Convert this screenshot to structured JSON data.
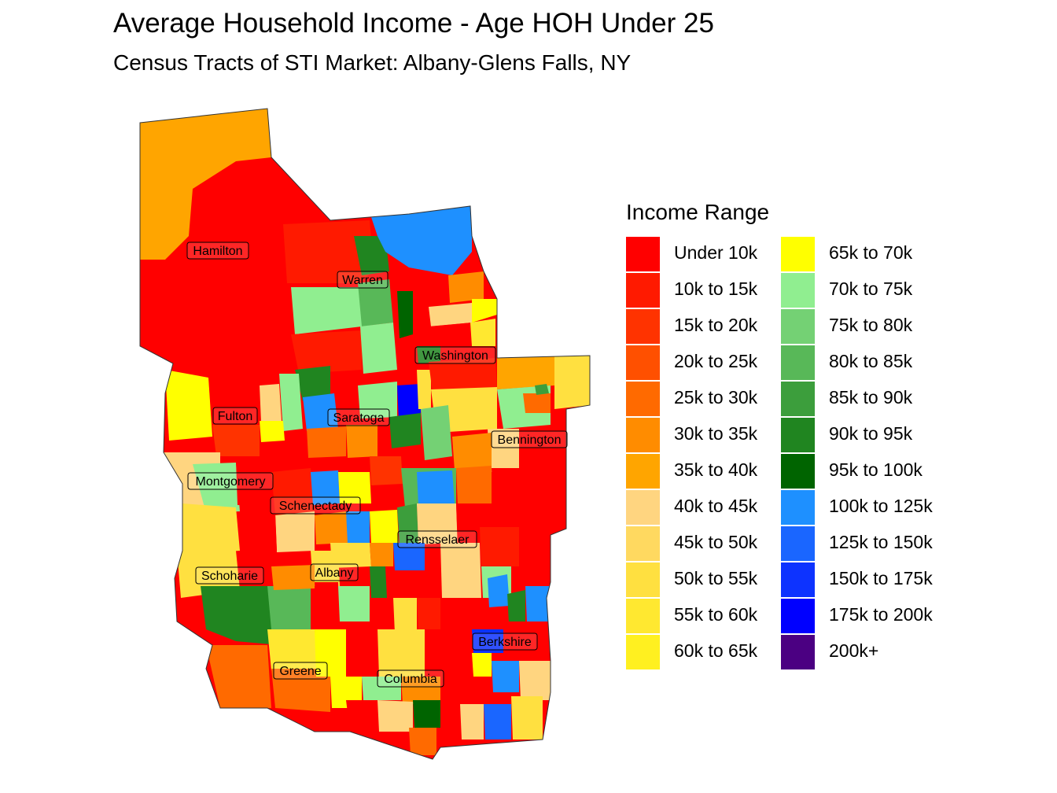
{
  "title": "Average Household Income - Age HOH Under 25",
  "subtitle": "Census Tracts of STI Market: Albany-Glens Falls, NY",
  "legend": {
    "title": "Income Range",
    "items": [
      {
        "label": "Under 10k",
        "color": "#FF0000"
      },
      {
        "label": "10k to 15k",
        "color": "#FF1A00"
      },
      {
        "label": "15k to 20k",
        "color": "#FF3300"
      },
      {
        "label": "20k to 25k",
        "color": "#FF5000"
      },
      {
        "label": "25k to 30k",
        "color": "#FF6A00"
      },
      {
        "label": "30k to 35k",
        "color": "#FF8C00"
      },
      {
        "label": "35k to 40k",
        "color": "#FFA500"
      },
      {
        "label": "40k to 45k",
        "color": "#FFD580"
      },
      {
        "label": "45k to 50k",
        "color": "#FFD960"
      },
      {
        "label": "50k to 55k",
        "color": "#FFE040"
      },
      {
        "label": "55k to 60k",
        "color": "#FFE830"
      },
      {
        "label": "60k to 65k",
        "color": "#FFF020"
      },
      {
        "label": "65k to 70k",
        "color": "#FFFF00"
      },
      {
        "label": "70k to 75k",
        "color": "#90EE90"
      },
      {
        "label": "75k to 80k",
        "color": "#74D174"
      },
      {
        "label": "80k to 85k",
        "color": "#58B858"
      },
      {
        "label": "85k to 90k",
        "color": "#3C9E3C"
      },
      {
        "label": "90k to 95k",
        "color": "#208520"
      },
      {
        "label": "95k to 100k",
        "color": "#006400"
      },
      {
        "label": "100k to 125k",
        "color": "#1E90FF"
      },
      {
        "label": "125k to 150k",
        "color": "#1A66FF"
      },
      {
        "label": "150k to 175k",
        "color": "#0D33FF"
      },
      {
        "label": "175k to 200k",
        "color": "#0000FF"
      },
      {
        "label": "200k+",
        "color": "#4B0082"
      }
    ]
  },
  "counties": [
    {
      "name": "Hamilton"
    },
    {
      "name": "Warren"
    },
    {
      "name": "Washington"
    },
    {
      "name": "Fulton"
    },
    {
      "name": "Saratoga"
    },
    {
      "name": "Bennington"
    },
    {
      "name": "Montgomery"
    },
    {
      "name": "Schenectady"
    },
    {
      "name": "Rensselaer"
    },
    {
      "name": "Schoharie"
    },
    {
      "name": "Albany"
    },
    {
      "name": "Berkshire"
    },
    {
      "name": "Greene"
    },
    {
      "name": "Columbia"
    }
  ]
}
